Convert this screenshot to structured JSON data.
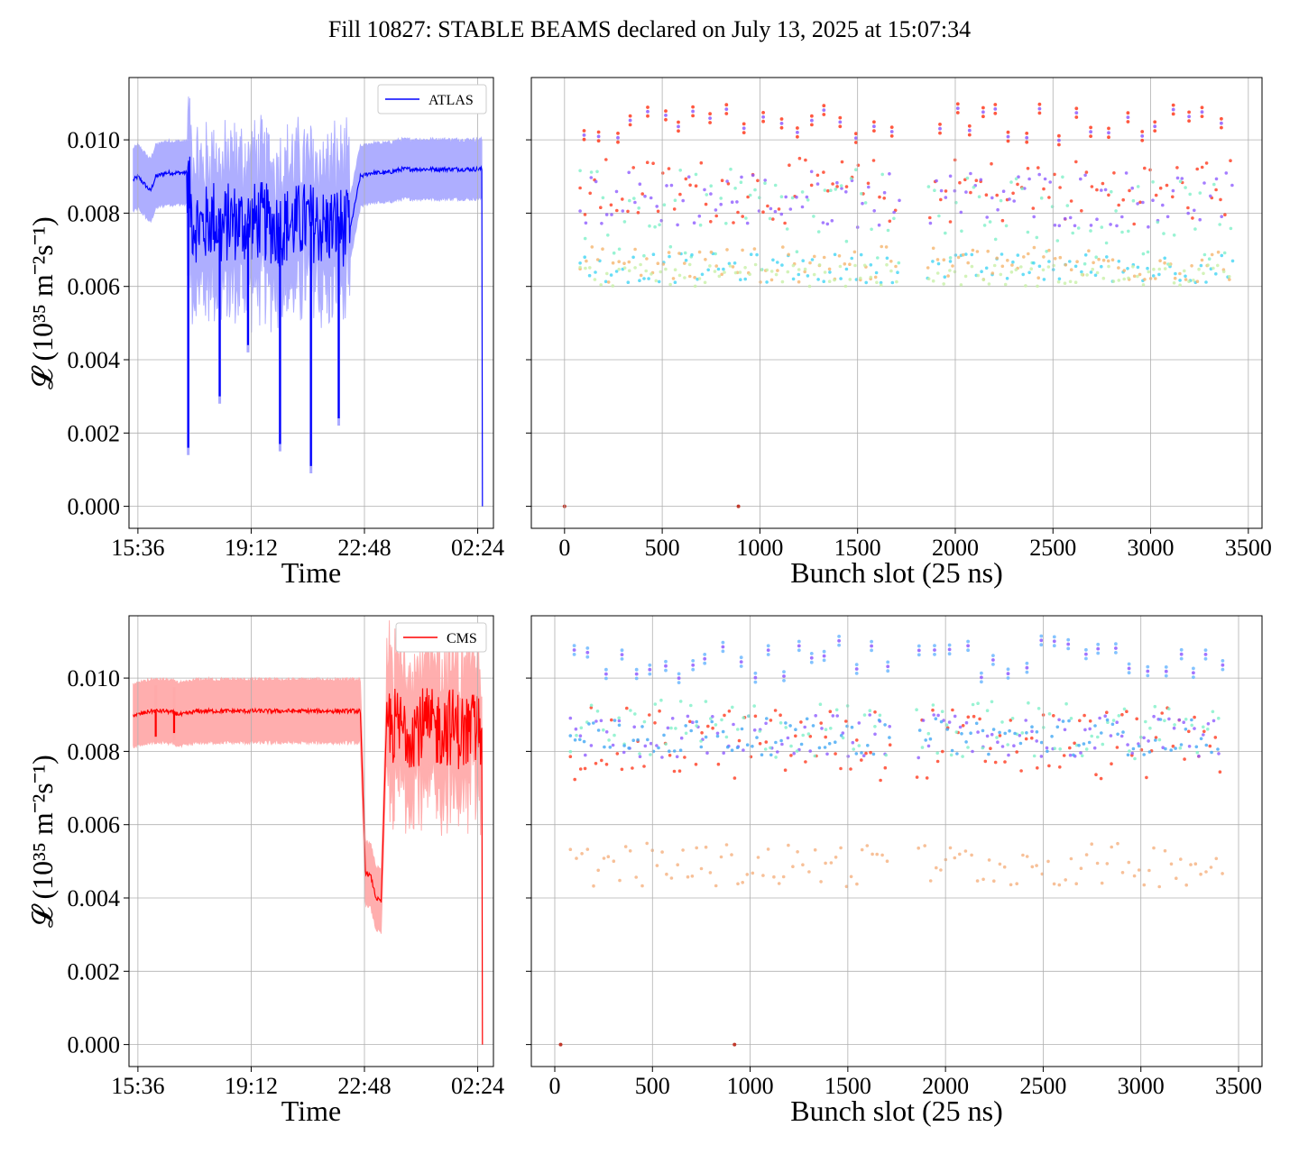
{
  "figure": {
    "title": "Fill 10827: STABLE BEAMS declared on July 13, 2025 at 15:07:34"
  },
  "chart_data": [
    {
      "type": "line",
      "panel": "top-left",
      "series": [
        {
          "name": "ATLAS",
          "color": "#0000ff"
        }
      ],
      "xlabel": "Time",
      "ylabel": "𝓛 (10³⁵ m⁻²s⁻¹)",
      "x_ticks": [
        "15:36",
        "19:12",
        "22:48",
        "02:24"
      ],
      "y_ticks": [
        "0.000",
        "0.002",
        "0.004",
        "0.006",
        "0.008",
        "0.010"
      ],
      "ylim": [
        -0.0006,
        0.0117
      ],
      "legend_position": "upper right",
      "grid": true,
      "band_color": "#aaaaff",
      "trace": {
        "x": [
          "15:27",
          "15:36",
          "16:00",
          "16:10",
          "16:30",
          "17:00",
          "17:10",
          "17:20",
          "17:40",
          "18:00",
          "18:15",
          "18:30",
          "19:00",
          "19:30",
          "20:00",
          "20:30",
          "21:00",
          "21:30",
          "22:00",
          "22:20",
          "22:40",
          "23:00",
          "23:30",
          "00:00",
          "00:30",
          "01:00",
          "01:30",
          "02:00",
          "02:15",
          "02:30",
          "02:32",
          "02:33"
        ],
        "y": [
          0.0089,
          0.009,
          0.0086,
          0.009,
          0.0091,
          0.0091,
          0.0091,
          0.0078,
          0.0076,
          0.0079,
          0.0075,
          0.0078,
          0.0077,
          0.0078,
          0.0076,
          0.0077,
          0.0078,
          0.0076,
          0.0077,
          0.0075,
          0.009,
          0.0091,
          0.0091,
          0.0092,
          0.0092,
          0.0092,
          0.0092,
          0.0092,
          0.0092,
          0.0092,
          0.0092,
          0.0
        ]
      },
      "dips": [
        {
          "t": "17:12",
          "y": 0.0016
        },
        {
          "t": "18:12",
          "y": 0.003
        },
        {
          "t": "19:06",
          "y": 0.0044
        },
        {
          "t": "20:07",
          "y": 0.0017
        },
        {
          "t": "21:06",
          "y": 0.0011
        },
        {
          "t": "21:59",
          "y": 0.0024
        }
      ]
    },
    {
      "type": "scatter",
      "panel": "top-right",
      "xlabel": "Bunch slot (25 ns)",
      "x_ticks": [
        "0",
        "500",
        "1000",
        "1500",
        "2000",
        "2500",
        "3000",
        "3500"
      ],
      "xlim": [
        -170,
        3570
      ],
      "ylim": [
        -0.0006,
        0.0117
      ],
      "grid": true,
      "bands": [
        {
          "name": "",
          "color": "#ff3b1f",
          "y_center": 0.0086,
          "y_spread": 0.0009
        },
        {
          "name": "",
          "color": "#8f5cff",
          "y_center": 0.0084,
          "y_spread": 0.0008
        },
        {
          "name": "",
          "color": "#7ff0c8",
          "y_center": 0.0079,
          "y_spread": 0.0013
        },
        {
          "name": "",
          "color": "#42d4f4",
          "y_center": 0.0065,
          "y_spread": 0.0004
        },
        {
          "name": "",
          "color": "#f5b56e",
          "y_center": 0.0066,
          "y_spread": 0.0005
        },
        {
          "name": "",
          "color": "#c8f0a8",
          "y_center": 0.0063,
          "y_spread": 0.0003
        }
      ],
      "top_cluster": {
        "color": "#ff3b1f",
        "y_min": 0.0101,
        "y_max": 0.011
      },
      "x_range": [
        80,
        3420
      ],
      "gap": [
        1720,
        1850
      ],
      "zero_points": [
        0,
        890
      ]
    },
    {
      "type": "line",
      "panel": "bottom-left",
      "series": [
        {
          "name": "CMS",
          "color": "#ff0000"
        }
      ],
      "xlabel": "Time",
      "ylabel": "𝓛 (10³⁵ m⁻²s⁻¹)",
      "x_ticks": [
        "15:36",
        "19:12",
        "22:48",
        "02:24"
      ],
      "y_ticks": [
        "0.000",
        "0.002",
        "0.004",
        "0.006",
        "0.008",
        "0.010"
      ],
      "ylim": [
        -0.0006,
        0.0117
      ],
      "legend_position": "upper right",
      "grid": true,
      "band_color": "#ffaaaa",
      "trace": {
        "x": [
          "15:27",
          "15:36",
          "16:00",
          "16:30",
          "17:00",
          "17:30",
          "18:00",
          "19:00",
          "20:00",
          "21:00",
          "22:00",
          "22:40",
          "22:50",
          "23:00",
          "23:10",
          "23:20",
          "23:30",
          "23:40",
          "00:00",
          "00:30",
          "01:00",
          "01:30",
          "02:00",
          "02:20",
          "02:30",
          "02:32",
          "02:33"
        ],
        "y": [
          0.009,
          0.009,
          0.0091,
          0.0091,
          0.009,
          0.0091,
          0.0091,
          0.0091,
          0.0091,
          0.0091,
          0.0091,
          0.0091,
          0.0047,
          0.0046,
          0.004,
          0.0039,
          0.0088,
          0.0087,
          0.0086,
          0.0087,
          0.0086,
          0.0087,
          0.0085,
          0.0086,
          0.0086,
          0.0086,
          0.0
        ]
      },
      "dips": [
        {
          "t": "16:10",
          "y": 0.0084
        },
        {
          "t": "16:45",
          "y": 0.0085
        }
      ]
    },
    {
      "type": "scatter",
      "panel": "bottom-right",
      "xlabel": "Bunch slot (25 ns)",
      "x_ticks": [
        "0",
        "500",
        "1000",
        "1500",
        "2000",
        "2500",
        "3000",
        "3500"
      ],
      "xlim": [
        -120,
        3620
      ],
      "ylim": [
        -0.0006,
        0.0117
      ],
      "grid": true,
      "bands": [
        {
          "name": "",
          "color": "#ff3b1f",
          "y_center": 0.0082,
          "y_spread": 0.001
        },
        {
          "name": "",
          "color": "#8f5cff",
          "y_center": 0.0084,
          "y_spread": 0.0006
        },
        {
          "name": "",
          "color": "#7ff0c8",
          "y_center": 0.0086,
          "y_spread": 0.0008
        },
        {
          "name": "",
          "color": "#42a8f4",
          "y_center": 0.0084,
          "y_spread": 0.0005
        },
        {
          "name": "",
          "color": "#f5b07e",
          "y_center": 0.0049,
          "y_spread": 0.0006
        }
      ],
      "top_cluster": {
        "color": "#6fb8ff",
        "y_min": 0.0101,
        "y_max": 0.0112
      },
      "x_range": [
        80,
        3420
      ],
      "gap": [
        1720,
        1850
      ],
      "zero_points": [
        30,
        920
      ]
    }
  ]
}
